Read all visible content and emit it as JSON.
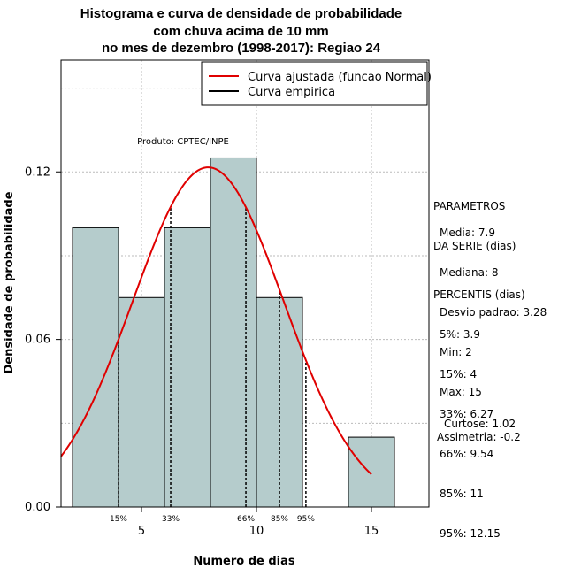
{
  "chart_data": {
    "type": "bar",
    "title": [
      "Histograma e curva de densidade de probabilidade",
      "com chuva acima de 10 mm",
      "no mes de dezembro (1998-2017): Regiao 24"
    ],
    "xlabel": "Numero de dias",
    "ylabel": "Densidade de probabilidade",
    "xlim": [
      1.5,
      17.5
    ],
    "ylim": [
      0,
      0.16
    ],
    "x_ticks": [
      5,
      10,
      15
    ],
    "x_tick_labels": [
      "5",
      "10",
      "15"
    ],
    "y_ticks": [
      0.0,
      0.06,
      0.12
    ],
    "y_tick_labels": [
      "0.00",
      "0.06",
      "0.12"
    ],
    "grid": true,
    "bins": [
      {
        "start": 2,
        "end": 4,
        "density": 0.1
      },
      {
        "start": 4,
        "end": 6,
        "density": 0.075
      },
      {
        "start": 6,
        "end": 8,
        "density": 0.1
      },
      {
        "start": 8,
        "end": 10,
        "density": 0.125
      },
      {
        "start": 10,
        "end": 12,
        "density": 0.075
      },
      {
        "start": 12,
        "end": 14,
        "density": 0.0
      },
      {
        "start": 14,
        "end": 16,
        "density": 0.025
      }
    ],
    "fitted_curve": {
      "mean": 7.9,
      "sd": 3.28,
      "x_range": [
        1.5,
        15
      ]
    },
    "percentiles": [
      {
        "label": "15%",
        "x": 4
      },
      {
        "label": "33%",
        "x": 6.27
      },
      {
        "label": "66%",
        "x": 9.54
      },
      {
        "label": "85%",
        "x": 11
      },
      {
        "label": "95%",
        "x": 12.15
      }
    ],
    "legend": {
      "position": "top-right",
      "entries": [
        {
          "label": "Curva ajustada (funcao Normal)",
          "color": "#e00000"
        },
        {
          "label": "Curva empirica",
          "color": "#000000"
        }
      ]
    },
    "annotation": "Produto: CPTEC/INPE",
    "colors": {
      "bar_fill": "#b5cccc",
      "curve": "#e00000",
      "grid": "#bbbbbb"
    }
  },
  "side_panel": {
    "params_title": [
      "PARAMETROS",
      "DA SERIE (dias)"
    ],
    "params": [
      "Media: 7.9",
      "Mediana: 8",
      "Desvio padrao: 3.28",
      "Min: 2",
      "Max: 15"
    ],
    "percentis_title": "PERCENTIS (dias)",
    "percentis": [
      "5%: 3.9",
      "15%: 4",
      "33%: 6.27",
      "66%: 9.54",
      "85%: 11",
      "95%: 12.15"
    ],
    "stats": [
      "Curtose: 1.02",
      "Assimetria: -0.2"
    ]
  }
}
